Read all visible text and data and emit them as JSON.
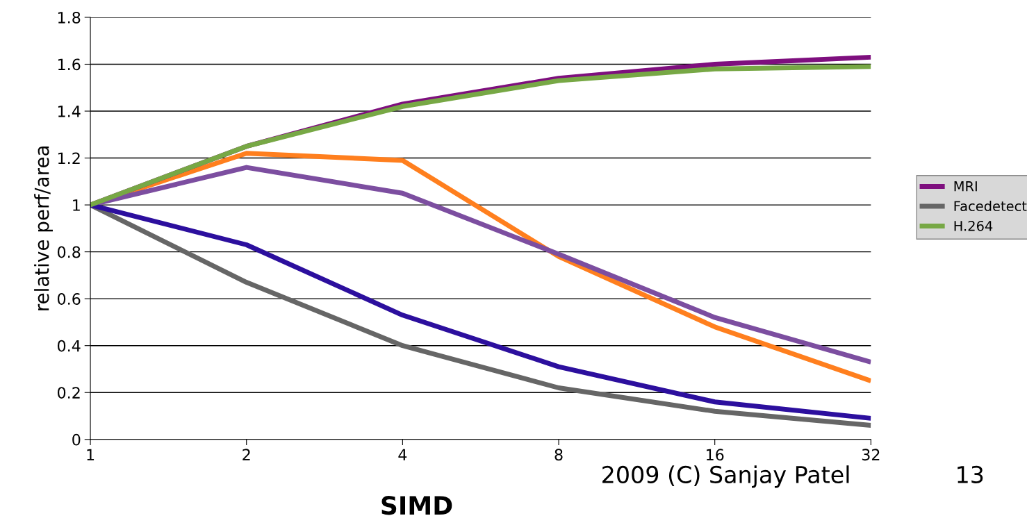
{
  "chart_data": {
    "type": "line",
    "ylabel": "relative perf/area",
    "x": [
      1,
      2,
      4,
      8,
      16,
      32
    ],
    "log": "x",
    "xlim": [
      1,
      32
    ],
    "xticks": [
      1,
      2,
      4,
      8,
      16,
      32
    ],
    "ylim": [
      0,
      1.8
    ],
    "yticks": [
      0,
      0.2,
      0.4,
      0.6,
      0.8,
      1,
      1.2,
      1.4,
      1.6,
      1.8
    ],
    "grid": "y",
    "legend": "right",
    "marker": "none",
    "line_style": "solid",
    "series": [
      {
        "color": "#ff7f1e",
        "values": [
          1,
          1.22,
          1.19,
          0.78,
          0.48,
          0.25
        ]
      },
      {
        "name": "MRI",
        "color": "#7e0f7e",
        "values": [
          1,
          1.25,
          1.43,
          1.54,
          1.6,
          1.63
        ]
      },
      {
        "name": "Facedetect",
        "color": "#666666",
        "values": [
          1,
          0.67,
          0.4,
          0.22,
          0.12,
          0.06
        ]
      },
      {
        "color": "#7c4ea0",
        "values": [
          1,
          1.16,
          1.05,
          0.79,
          0.52,
          0.33
        ]
      },
      {
        "color": "#2c0f9e",
        "values": [
          1,
          0.83,
          0.53,
          0.31,
          0.16,
          0.09
        ]
      },
      {
        "name": "H.264",
        "color": "#77a845",
        "values": [
          1,
          1.25,
          1.42,
          1.53,
          1.58,
          1.59
        ]
      }
    ],
    "annotations": [
      "SIMD",
      "2009 (C) Sanjay Patel",
      "13"
    ]
  }
}
